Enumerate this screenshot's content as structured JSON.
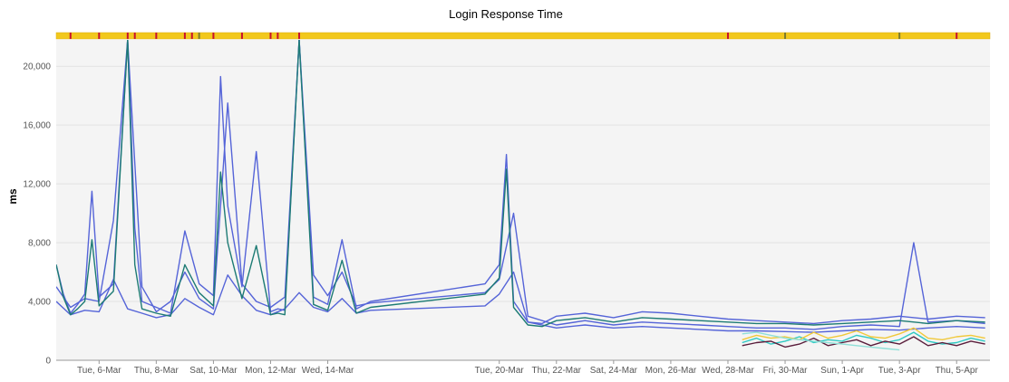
{
  "chart_data": {
    "type": "line",
    "title": "Login Response Time",
    "ylabel": "ms",
    "xlabel": "",
    "ylim": [
      0,
      21800
    ],
    "y_ticks": [
      0,
      4000,
      8000,
      12000,
      16000,
      20000
    ],
    "y_tick_labels": [
      "0",
      "4,000",
      "8,000",
      "12,000",
      "16,000",
      "20,000"
    ],
    "x_range": [
      "2018-03-04T12:00",
      "2018-04-06T04:00"
    ],
    "x_ticks": [
      "2018-03-06",
      "2018-03-08",
      "2018-03-10",
      "2018-03-12",
      "2018-03-14",
      "2018-03-20",
      "2018-03-22",
      "2018-03-24",
      "2018-03-26",
      "2018-03-28",
      "2018-03-30",
      "2018-04-01",
      "2018-04-03",
      "2018-04-05"
    ],
    "x_tick_labels": [
      "Tue, 6-Mar",
      "Thu, 8-Mar",
      "Sat, 10-Mar",
      "Mon, 12-Mar",
      "Wed, 14-Mar",
      "Tue, 20-Mar",
      "Thu, 22-Mar",
      "Sat, 24-Mar",
      "Mon, 26-Mar",
      "Wed, 28-Mar",
      "Fri, 30-Mar",
      "Sun, 1-Apr",
      "Tue, 3-Apr",
      "Thu, 5-Apr"
    ],
    "grid": true,
    "legend": "none",
    "status_bar": {
      "color": "#f2c81c",
      "red_markers": [
        "2018-03-05",
        "2018-03-06",
        "2018-03-07",
        "2018-03-07T06:00",
        "2018-03-08",
        "2018-03-09",
        "2018-03-09T06:00",
        "2018-03-10",
        "2018-03-11",
        "2018-03-12",
        "2018-03-12T06:00",
        "2018-03-13",
        "2018-03-28",
        "2018-04-05"
      ],
      "olive_markers": [
        "2018-03-09T12:00",
        "2018-03-30",
        "2018-04-03"
      ]
    },
    "series": [
      {
        "color": "#5564d8",
        "x": [
          "2018-03-04T12:00",
          "2018-03-04T18:00",
          "2018-03-05",
          "2018-03-05T06:00",
          "2018-03-05T12:00",
          "2018-03-05T18:00",
          "2018-03-06",
          "2018-03-06T12:00",
          "2018-03-07",
          "2018-03-07T06:00",
          "2018-03-07T12:00",
          "2018-03-08",
          "2018-03-08T12:00",
          "2018-03-09",
          "2018-03-09T12:00",
          "2018-03-10",
          "2018-03-10T06:00",
          "2018-03-10T12:00",
          "2018-03-11",
          "2018-03-11T12:00",
          "2018-03-12",
          "2018-03-12T06:00",
          "2018-03-12T12:00",
          "2018-03-13",
          "2018-03-13T12:00",
          "2018-03-14",
          "2018-03-14T12:00",
          "2018-03-15",
          "2018-03-15T12:00",
          "2018-03-19T12:00",
          "2018-03-20",
          "2018-03-20T06:00",
          "2018-03-20T12:00",
          "2018-03-21",
          "2018-03-21T12:00",
          "2018-03-22",
          "2018-03-23",
          "2018-03-24",
          "2018-03-25",
          "2018-03-26",
          "2018-03-27",
          "2018-03-28",
          "2018-03-29",
          "2018-03-30",
          "2018-03-31",
          "2018-04-01",
          "2018-04-02",
          "2018-04-03",
          "2018-04-04",
          "2018-04-05",
          "2018-04-06"
        ],
        "y": [
          6500,
          4500,
          3200,
          3800,
          4500,
          11500,
          4300,
          5200,
          21800,
          9000,
          4000,
          3600,
          3200,
          8800,
          5200,
          4400,
          19300,
          10500,
          5000,
          14200,
          3300,
          3500,
          3400,
          21800,
          4300,
          3800,
          8200,
          3500,
          4000,
          5200,
          6500,
          14000,
          4000,
          2600,
          2500,
          3000,
          3200,
          2900,
          3300,
          3200,
          3000,
          2800,
          2700,
          2600,
          2500,
          2700,
          2800,
          3000,
          2800,
          3000,
          2900
        ]
      },
      {
        "color": "#5564d8",
        "x": [
          "2018-03-04T12:00",
          "2018-03-05",
          "2018-03-05T12:00",
          "2018-03-06",
          "2018-03-06T12:00",
          "2018-03-07",
          "2018-03-07T12:00",
          "2018-03-08",
          "2018-03-08T12:00",
          "2018-03-09",
          "2018-03-09T12:00",
          "2018-03-10",
          "2018-03-10T12:00",
          "2018-03-11",
          "2018-03-11T12:00",
          "2018-03-12",
          "2018-03-12T12:00",
          "2018-03-13",
          "2018-03-13T12:00",
          "2018-03-14",
          "2018-03-14T12:00",
          "2018-03-15",
          "2018-03-15T12:00",
          "2018-03-19T12:00",
          "2018-03-20",
          "2018-03-20T12:00",
          "2018-03-21",
          "2018-03-22",
          "2018-03-23",
          "2018-03-24",
          "2018-03-25",
          "2018-03-26",
          "2018-03-27",
          "2018-03-28",
          "2018-03-29",
          "2018-03-30",
          "2018-03-31",
          "2018-04-01",
          "2018-04-02",
          "2018-04-03",
          "2018-04-03T12:00",
          "2018-04-04",
          "2018-04-05",
          "2018-04-06"
        ],
        "y": [
          5000,
          3600,
          4200,
          4000,
          9500,
          21800,
          5000,
          3300,
          4000,
          6000,
          4200,
          3500,
          17500,
          5200,
          4000,
          3600,
          4300,
          21800,
          5800,
          4400,
          6000,
          3700,
          3900,
          4600,
          5500,
          10000,
          3000,
          2400,
          2700,
          2400,
          2600,
          2500,
          2400,
          2300,
          2200,
          2200,
          2100,
          2300,
          2400,
          2300,
          8000,
          2600,
          2700,
          2500
        ]
      },
      {
        "color": "#5564d8",
        "x": [
          "2018-03-04T12:00",
          "2018-03-05",
          "2018-03-05T12:00",
          "2018-03-06",
          "2018-03-06T12:00",
          "2018-03-07",
          "2018-03-07T12:00",
          "2018-03-08",
          "2018-03-08T12:00",
          "2018-03-09",
          "2018-03-09T12:00",
          "2018-03-10",
          "2018-03-10T12:00",
          "2018-03-11",
          "2018-03-11T12:00",
          "2018-03-12",
          "2018-03-12T12:00",
          "2018-03-13",
          "2018-03-13T12:00",
          "2018-03-14",
          "2018-03-14T12:00",
          "2018-03-15",
          "2018-03-15T12:00",
          "2018-03-19T12:00",
          "2018-03-20",
          "2018-03-20T12:00",
          "2018-03-21",
          "2018-03-22",
          "2018-03-23",
          "2018-03-24",
          "2018-03-25",
          "2018-03-26",
          "2018-03-27",
          "2018-03-28",
          "2018-03-29",
          "2018-03-30",
          "2018-03-31",
          "2018-04-01",
          "2018-04-02",
          "2018-04-03",
          "2018-04-04",
          "2018-04-05",
          "2018-04-06"
        ],
        "y": [
          4000,
          3100,
          3400,
          3300,
          5500,
          3500,
          3200,
          2900,
          3100,
          4200,
          3600,
          3100,
          5800,
          4400,
          3400,
          3100,
          3500,
          4600,
          3600,
          3300,
          4200,
          3200,
          3400,
          3700,
          4500,
          6000,
          2600,
          2200,
          2400,
          2200,
          2300,
          2200,
          2100,
          2000,
          2000,
          1950,
          1900,
          2000,
          2100,
          2050,
          2200,
          2300,
          2200
        ]
      },
      {
        "color": "#1d7b74",
        "x": [
          "2018-03-04T12:00",
          "2018-03-04T18:00",
          "2018-03-05",
          "2018-03-05T06:00",
          "2018-03-05T12:00",
          "2018-03-05T18:00",
          "2018-03-06",
          "2018-03-06T12:00",
          "2018-03-07",
          "2018-03-07T06:00",
          "2018-03-07T12:00",
          "2018-03-08",
          "2018-03-08T12:00",
          "2018-03-09",
          "2018-03-09T12:00",
          "2018-03-10",
          "2018-03-10T06:00",
          "2018-03-10T12:00",
          "2018-03-11",
          "2018-03-11T12:00",
          "2018-03-12",
          "2018-03-12T06:00",
          "2018-03-12T12:00",
          "2018-03-13",
          "2018-03-13T12:00",
          "2018-03-14",
          "2018-03-14T12:00",
          "2018-03-15",
          "2018-03-15T12:00",
          "2018-03-19T12:00",
          "2018-03-20",
          "2018-03-20T06:00",
          "2018-03-20T12:00",
          "2018-03-21",
          "2018-03-21T12:00",
          "2018-03-22",
          "2018-03-23",
          "2018-03-24",
          "2018-03-25",
          "2018-03-26",
          "2018-03-27",
          "2018-03-28",
          "2018-03-29",
          "2018-03-30",
          "2018-03-31",
          "2018-04-01",
          "2018-04-02",
          "2018-04-03",
          "2018-04-04",
          "2018-04-05",
          "2018-04-06"
        ],
        "y": [
          6500,
          4300,
          3100,
          3500,
          4000,
          8200,
          3700,
          4700,
          21800,
          6500,
          3500,
          3200,
          3000,
          6500,
          4600,
          3700,
          12800,
          8000,
          4200,
          7800,
          3100,
          3200,
          3100,
          21800,
          3800,
          3400,
          6800,
          3200,
          3600,
          4500,
          5600,
          13000,
          3600,
          2400,
          2300,
          2700,
          2900,
          2600,
          2900,
          2800,
          2700,
          2600,
          2500,
          2500,
          2400,
          2500,
          2600,
          2700,
          2500,
          2700,
          2600
        ]
      },
      {
        "color": "#2ec9c3",
        "x": [
          "2018-03-28T12:00",
          "2018-03-29",
          "2018-03-29T12:00",
          "2018-03-30",
          "2018-03-30T12:00",
          "2018-03-31",
          "2018-03-31T12:00",
          "2018-04-01",
          "2018-04-01T12:00",
          "2018-04-02",
          "2018-04-02T12:00",
          "2018-04-03",
          "2018-04-03T12:00",
          "2018-04-04",
          "2018-04-04T12:00",
          "2018-04-05",
          "2018-04-05T12:00",
          "2018-04-06"
        ],
        "y": [
          1200,
          1500,
          1100,
          1300,
          1600,
          1200,
          1400,
          1300,
          1700,
          1500,
          1200,
          1400,
          1900,
          1300,
          1100,
          1200,
          1500,
          1300
        ]
      },
      {
        "color": "#5a1e3c",
        "x": [
          "2018-03-28T12:00",
          "2018-03-29",
          "2018-03-29T12:00",
          "2018-03-30",
          "2018-03-30T12:00",
          "2018-03-31",
          "2018-03-31T12:00",
          "2018-04-01",
          "2018-04-01T12:00",
          "2018-04-02",
          "2018-04-02T12:00",
          "2018-04-03",
          "2018-04-03T12:00",
          "2018-04-04",
          "2018-04-04T12:00",
          "2018-04-05",
          "2018-04-05T12:00",
          "2018-04-06"
        ],
        "y": [
          1000,
          1200,
          1300,
          900,
          1100,
          1500,
          1000,
          1200,
          1400,
          1000,
          1300,
          1100,
          1600,
          1000,
          1200,
          1000,
          1300,
          1100
        ]
      },
      {
        "color": "#f0c83a",
        "x": [
          "2018-03-28T12:00",
          "2018-03-29",
          "2018-03-29T12:00",
          "2018-03-30",
          "2018-03-30T12:00",
          "2018-03-31",
          "2018-03-31T12:00",
          "2018-04-01",
          "2018-04-01T12:00",
          "2018-04-02",
          "2018-04-02T12:00",
          "2018-04-03",
          "2018-04-03T12:00",
          "2018-04-04",
          "2018-04-04T12:00",
          "2018-04-05",
          "2018-04-05T12:00",
          "2018-04-06"
        ],
        "y": [
          1400,
          1700,
          1500,
          1600,
          1400,
          1900,
          1500,
          1700,
          2000,
          1600,
          1500,
          1800,
          2200,
          1500,
          1400,
          1600,
          1700,
          1500
        ]
      },
      {
        "color": "#8fe0d8",
        "x": [
          "2018-03-28T12:00",
          "2018-03-29",
          "2018-03-29T12:00",
          "2018-03-30",
          "2018-03-30T12:00",
          "2018-03-31",
          "2018-03-31T12:00",
          "2018-04-01",
          "2018-04-01T12:00",
          "2018-04-02",
          "2018-04-02T12:00",
          "2018-04-03"
        ],
        "y": [
          1800,
          1900,
          1700,
          1500,
          1400,
          1300,
          1200,
          1100,
          1000,
          900,
          800,
          700
        ]
      }
    ]
  }
}
